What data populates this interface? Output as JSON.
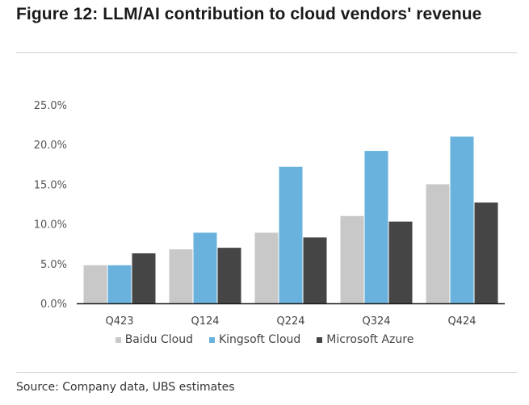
{
  "chart_data": {
    "type": "bar",
    "title": "Figure 12: LLM/AI contribution to cloud vendors' revenue",
    "xlabel": "",
    "ylabel": "",
    "ylim": [
      0,
      25
    ],
    "yticks": [
      "0.0%",
      "5.0%",
      "10.0%",
      "15.0%",
      "20.0%",
      "25.0%"
    ],
    "ytick_values": [
      0,
      5,
      10,
      15,
      20,
      25
    ],
    "grid": false,
    "legend_position": "bottom",
    "categories": [
      "Q423",
      "Q124",
      "Q224",
      "Q324",
      "Q424"
    ],
    "series": [
      {
        "name": "Baidu Cloud",
        "color": "#c8c8c8",
        "values": [
          4.8,
          6.8,
          8.9,
          11.0,
          15.0
        ]
      },
      {
        "name": "Kingsoft Cloud",
        "color": "#6ab2de",
        "values": [
          4.8,
          8.9,
          17.2,
          19.2,
          21.0
        ]
      },
      {
        "name": "Microsoft Azure",
        "color": "#454545",
        "values": [
          6.3,
          7.0,
          8.3,
          10.3,
          12.7
        ]
      }
    ],
    "source": "Source: Company data, UBS estimates"
  }
}
